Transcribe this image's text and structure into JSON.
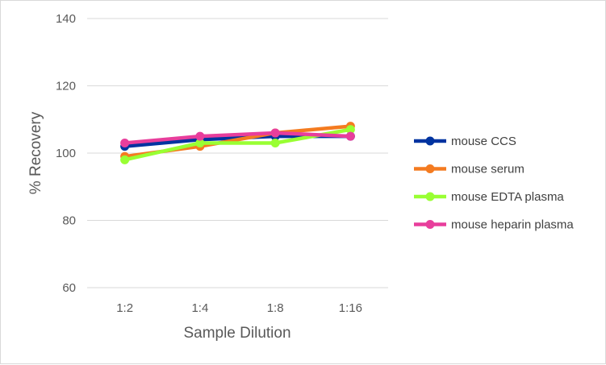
{
  "chart_data": {
    "type": "line",
    "title": "",
    "xlabel": "Sample Dilution",
    "ylabel": "% Recovery",
    "categories": [
      "1:2",
      "1:4",
      "1:8",
      "1:16"
    ],
    "ylim": [
      60,
      140
    ],
    "yticks": [
      60,
      80,
      100,
      120,
      140
    ],
    "grid": true,
    "legend_position": "right",
    "series": [
      {
        "name": "mouse CCS",
        "color": "#0033a0",
        "values": [
          102,
          104,
          105,
          105
        ]
      },
      {
        "name": "mouse serum",
        "color": "#f47b20",
        "values": [
          99,
          102,
          106,
          108
        ]
      },
      {
        "name": "mouse EDTA plasma",
        "color": "#99ff33",
        "values": [
          98,
          103,
          103,
          107
        ]
      },
      {
        "name": "mouse heparin plasma",
        "color": "#e83e9c",
        "values": [
          103,
          105,
          106,
          105
        ]
      }
    ]
  }
}
